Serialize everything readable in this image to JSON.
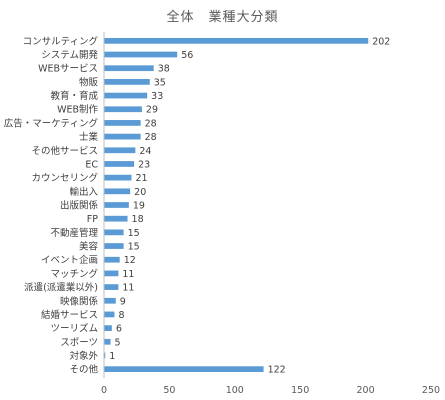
{
  "chart_data": {
    "type": "bar",
    "orientation": "horizontal",
    "title": "全体　業種大分類",
    "categories": [
      "コンサルティング",
      "システム開発",
      "WEBサービス",
      "物販",
      "教育・育成",
      "WEB制作",
      "広告・マーケティング",
      "士業",
      "その他サービス",
      "EC",
      "カウンセリング",
      "輸出入",
      "出版関係",
      "FP",
      "不動産管理",
      "美容",
      "イベント企画",
      "マッチング",
      "派遣(派遣業以外)",
      "映像関係",
      "結婚サービス",
      "ツーリズム",
      "スポーツ",
      "対象外",
      "その他"
    ],
    "values": [
      202,
      56,
      38,
      35,
      33,
      29,
      28,
      28,
      24,
      23,
      21,
      20,
      19,
      18,
      15,
      15,
      12,
      11,
      11,
      9,
      8,
      6,
      5,
      1,
      122
    ],
    "xlim": [
      0,
      250
    ],
    "xticks": [
      "0",
      "50",
      "100",
      "150",
      "200",
      "250"
    ],
    "data_labels": true,
    "grid": false,
    "bar_color": "#5b9bd5"
  }
}
